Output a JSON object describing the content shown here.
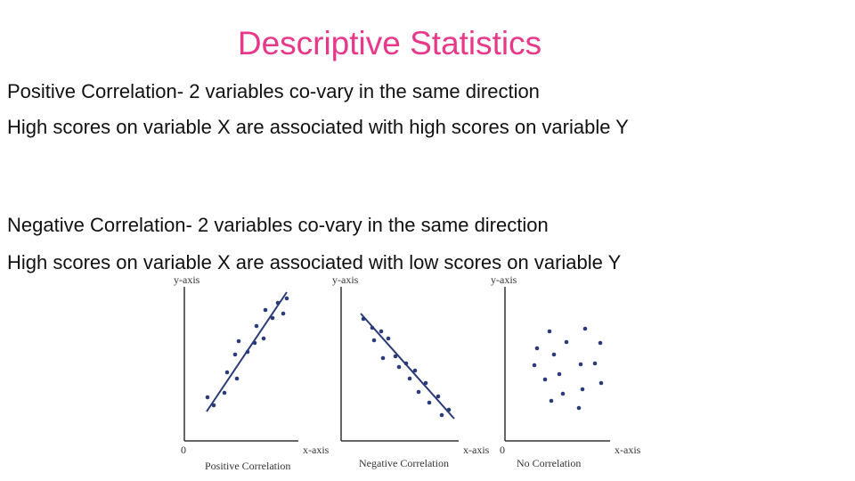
{
  "title": "Descriptive Statistics",
  "paragraphs": [
    {
      "heading": "Positive Correlation- 2 variables co-vary in the same direction",
      "text": "High scores on variable X are associated with high scores on variable Y"
    },
    {
      "heading": "Negative Correlation- 2 variables co-vary in the same direction",
      "text": "High scores on variable X are associated with low scores on variable Y"
    }
  ],
  "figures": [
    {
      "y_axis": "y-axis",
      "x_axis": "x-axis",
      "origin": "0",
      "caption": "Positive Correlation"
    },
    {
      "y_axis": "y-axis",
      "x_axis": "x-axis",
      "caption": "Negative Correlation"
    },
    {
      "y_axis": "y-axis",
      "x_axis": "x-axis",
      "origin": "0",
      "caption": "No Correlation"
    }
  ]
}
